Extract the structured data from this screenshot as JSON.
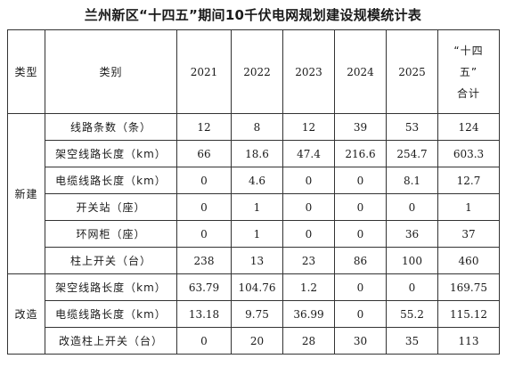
{
  "title": "兰州新区“十四五”期间10千伏电网规划建设规模统计表",
  "header": {
    "type": "类型",
    "category": "类别",
    "years": [
      "2021",
      "2022",
      "2023",
      "2024",
      "2025"
    ],
    "total_lines": [
      "“十四",
      "五”",
      "合计"
    ]
  },
  "groups": [
    {
      "name": "新建",
      "rows": [
        {
          "label": "线路条数（条）",
          "values": [
            "12",
            "8",
            "12",
            "39",
            "53",
            "124"
          ]
        },
        {
          "label": "架空线路长度（km）",
          "values": [
            "66",
            "18.6",
            "47.4",
            "216.6",
            "254.7",
            "603.3"
          ]
        },
        {
          "label": "电缆线路长度（km）",
          "values": [
            "0",
            "4.6",
            "0",
            "0",
            "8.1",
            "12.7"
          ]
        },
        {
          "label": "开关站（座）",
          "values": [
            "0",
            "1",
            "0",
            "0",
            "0",
            "1"
          ]
        },
        {
          "label": "环网柜（座）",
          "values": [
            "0",
            "1",
            "0",
            "0",
            "36",
            "37"
          ]
        },
        {
          "label": "柱上开关（台）",
          "values": [
            "238",
            "13",
            "23",
            "86",
            "100",
            "460"
          ]
        }
      ]
    },
    {
      "name": "改造",
      "rows": [
        {
          "label": "架空线路长度（km）",
          "values": [
            "63.79",
            "104.76",
            "1.2",
            "0",
            "0",
            "169.75"
          ]
        },
        {
          "label": "电缆线路长度（km）",
          "values": [
            "13.18",
            "9.75",
            "36.99",
            "0",
            "55.2",
            "115.12"
          ]
        },
        {
          "label": "改造柱上开关（台）",
          "values": [
            "0",
            "20",
            "28",
            "30",
            "35",
            "113"
          ]
        }
      ]
    }
  ]
}
